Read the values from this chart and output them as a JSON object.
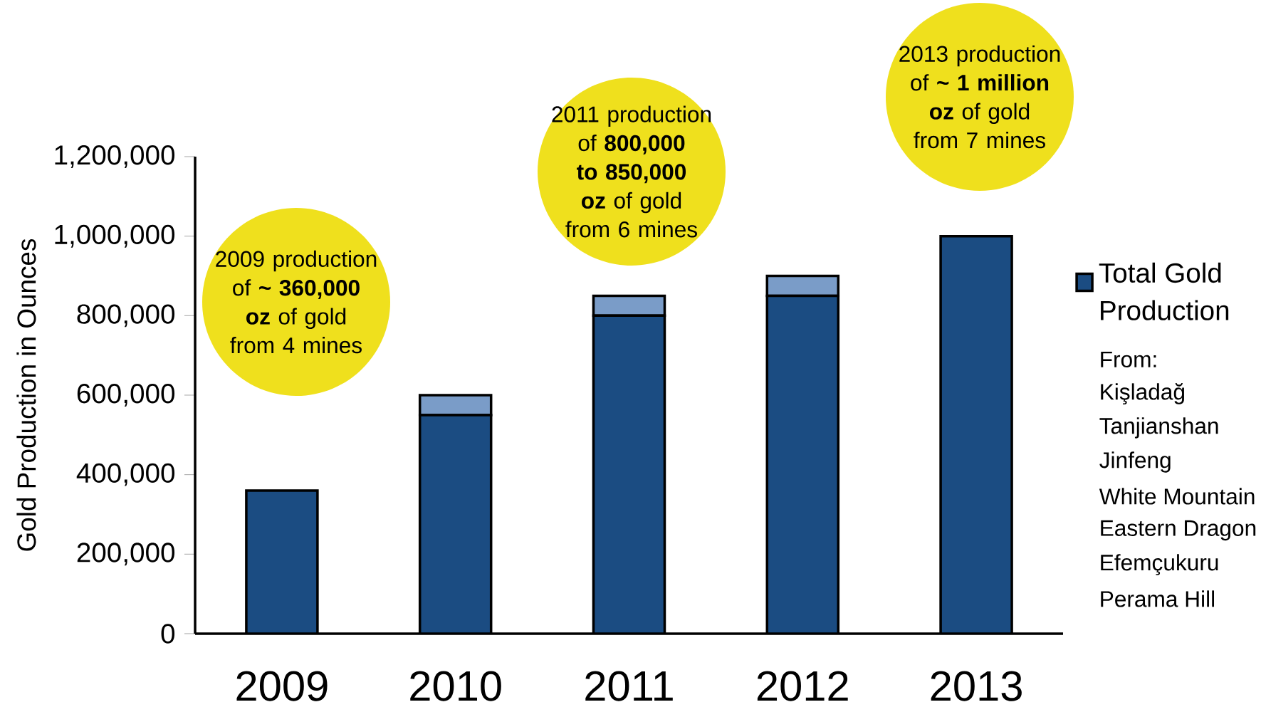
{
  "chart_data": {
    "type": "bar",
    "stacked": true,
    "ylabel": "Gold Production in Ounces",
    "categories": [
      "2009",
      "2010",
      "2011",
      "2012",
      "2013"
    ],
    "series": [
      {
        "name": "Total Gold Production",
        "color": "#1b4c82",
        "values": [
          360000,
          550000,
          800000,
          850000,
          1000000
        ]
      },
      {
        "color": "#7a9cc8",
        "values": [
          0,
          50000,
          50000,
          50000,
          0
        ]
      }
    ],
    "ylim": [
      0,
      1200000
    ],
    "yticks": [
      {
        "value": 0,
        "label": "0"
      },
      {
        "value": 200000,
        "label": "200,000"
      },
      {
        "value": 400000,
        "label": "400,000"
      },
      {
        "value": 600000,
        "label": "600,000"
      },
      {
        "value": 800000,
        "label": "800,000"
      },
      {
        "value": 1000000,
        "label": "1,000,000"
      },
      {
        "value": 1200000,
        "label": "1,200,000"
      }
    ],
    "legend": "right",
    "annotations": [
      "2009 production of **~ 360,000 oz** of gold from 4 mines",
      "2011 production of **800,000 to 850,000 oz** of gold from 6 mines",
      "2013 production of **~ 1 million oz** of gold from 7 mines",
      "From:",
      "Kişladağ",
      "Tanjianshan",
      "Jinfeng",
      "White Mountain",
      "Eastern Dragon",
      "Efemçukuru",
      "Perama Hill"
    ]
  }
}
